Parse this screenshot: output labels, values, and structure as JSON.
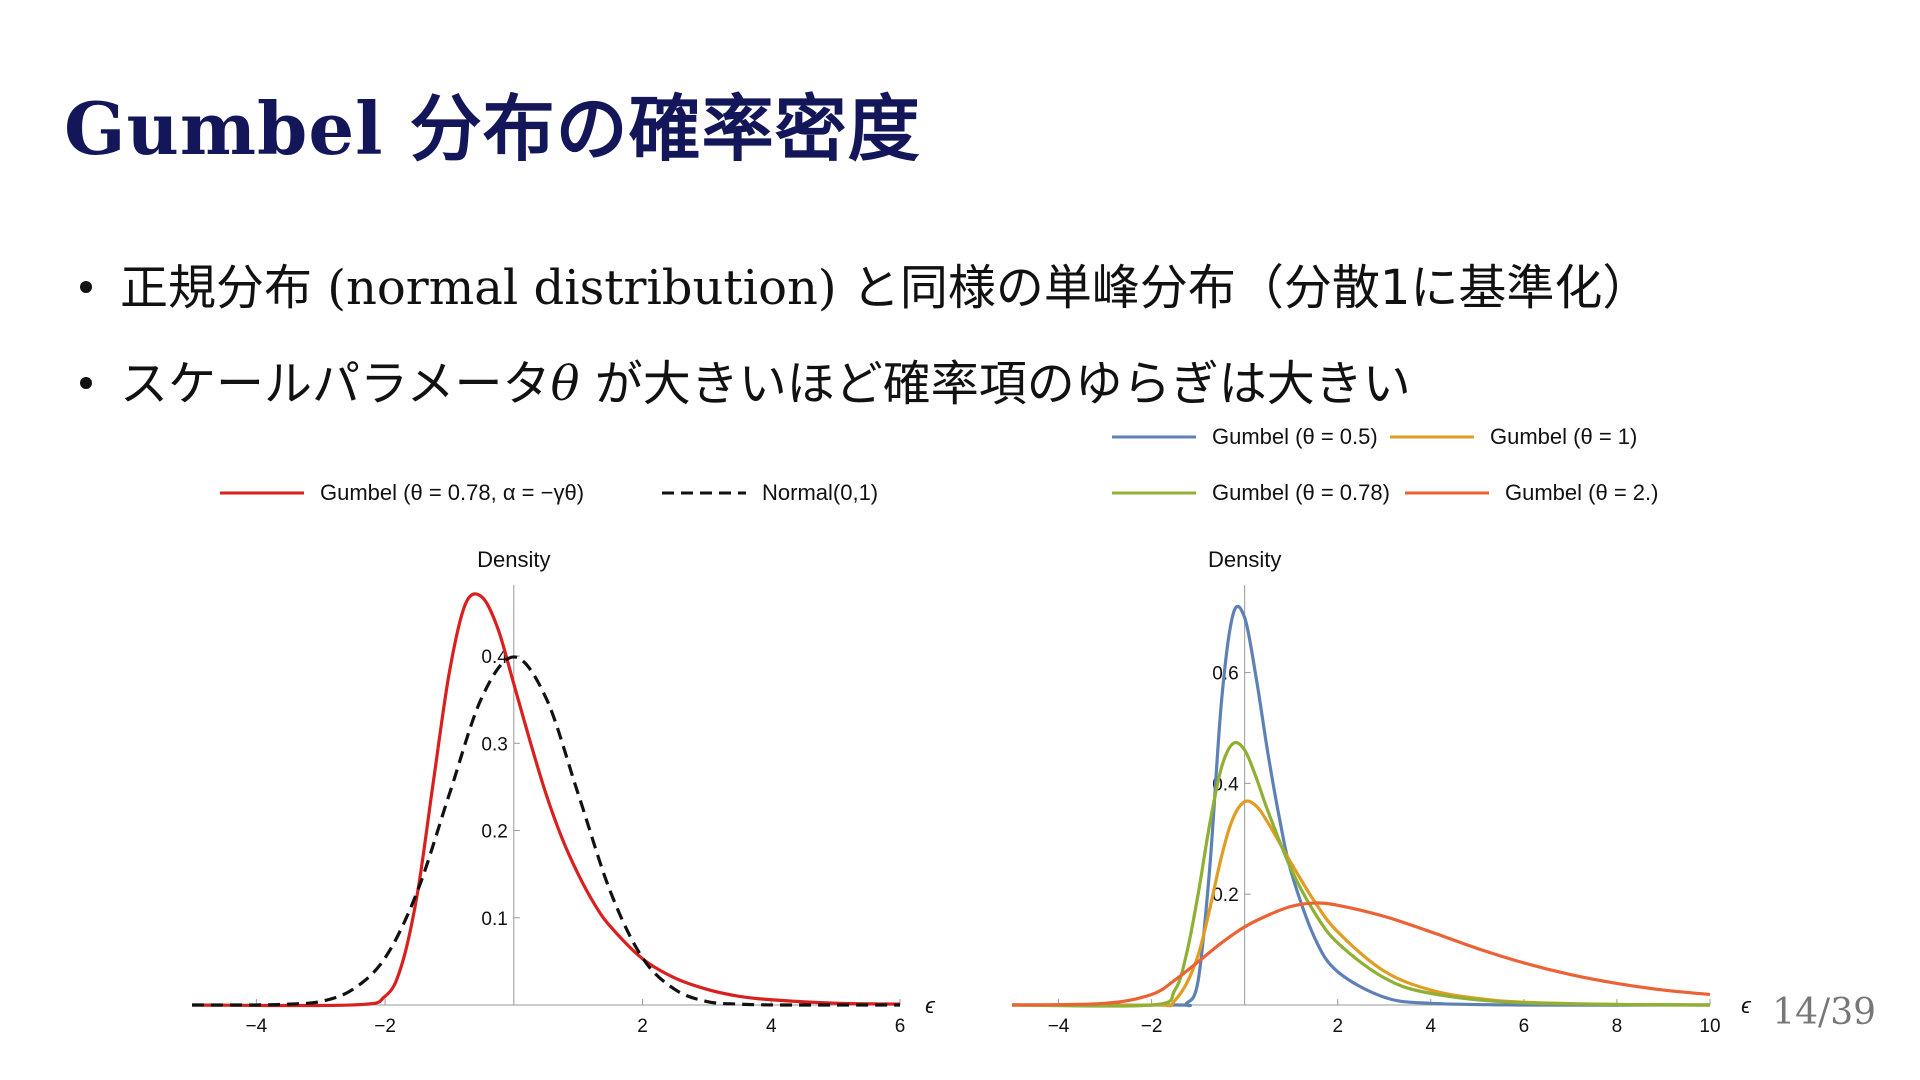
{
  "title": "Gumbel 分布の確率密度",
  "bullets": {
    "b1_pre": "正規分布 ",
    "b1_serif": "(normal distribution)",
    "b1_post": " と同様の単峰分布（分散1に基準化）",
    "b2_pre": "スケールパラメータ",
    "b2_theta": "θ",
    "b2_post": " が大きいほど確率項のゆらぎは大きい"
  },
  "page": {
    "current": "14",
    "sep": "/",
    "total": "39"
  },
  "chart_data": [
    {
      "type": "line",
      "ylabel": "Density",
      "xlabel": "ϵ",
      "xlim": [
        -5,
        6
      ],
      "ylim": [
        0,
        0.47
      ],
      "xticks": [
        -4,
        -2,
        2,
        4,
        6
      ],
      "yticks": [
        0.1,
        0.2,
        0.3,
        0.4
      ],
      "legend_position": "top",
      "series": [
        {
          "name": "Gumbel (θ = 0.78, α = −γθ)",
          "color": "#d9201e",
          "dash": "solid",
          "x": [
            -5,
            -2.5,
            -2,
            -1.75,
            -1.5,
            -1.25,
            -1,
            -0.75,
            -0.5,
            -0.25,
            0,
            0.25,
            0.5,
            0.75,
            1,
            1.25,
            1.5,
            2,
            2.5,
            3,
            3.5,
            4,
            5,
            6
          ],
          "y": [
            0,
            0.0001,
            0.01,
            0.044,
            0.127,
            0.256,
            0.382,
            0.46,
            0.468,
            0.432,
            0.368,
            0.303,
            0.242,
            0.191,
            0.15,
            0.116,
            0.09,
            0.053,
            0.031,
            0.018,
            0.01,
            0.006,
            0.002,
            0.001
          ]
        },
        {
          "name": "Normal(0,1)",
          "color": "#111111",
          "dash": "dashed",
          "x": [
            -5,
            -4,
            -3.5,
            -3,
            -2.5,
            -2,
            -1.5,
            -1,
            -0.5,
            0,
            0.5,
            1,
            1.5,
            2,
            2.5,
            3,
            3.5,
            4,
            5,
            6
          ],
          "y": [
            0,
            0.0001,
            0.001,
            0.004,
            0.018,
            0.054,
            0.13,
            0.242,
            0.352,
            0.399,
            0.352,
            0.242,
            0.13,
            0.054,
            0.018,
            0.004,
            0.001,
            0.0001,
            0,
            0
          ]
        }
      ]
    },
    {
      "type": "line",
      "ylabel": "Density",
      "xlabel": "ϵ",
      "xlim": [
        -5,
        10
      ],
      "ylim": [
        0,
        0.74
      ],
      "xticks": [
        -4,
        -2,
        2,
        4,
        6,
        8,
        10
      ],
      "yticks": [
        0.2,
        0.4,
        0.6
      ],
      "legend_position": "top",
      "series": [
        {
          "name": "Gumbel (θ = 0.5)",
          "color": "#5e81b5",
          "x": [
            -5,
            -1.5,
            -1.25,
            -1,
            -0.75,
            -0.5,
            -0.25,
            0,
            0.25,
            0.5,
            0.75,
            1,
            1.5,
            2,
            3,
            4,
            6,
            10
          ],
          "y": [
            0,
            0.0,
            0.003,
            0.044,
            0.248,
            0.546,
            0.705,
            0.699,
            0.589,
            0.454,
            0.336,
            0.24,
            0.122,
            0.06,
            0.014,
            0.003,
            0,
            0
          ]
        },
        {
          "name": "Gumbel (θ = 1)",
          "color": "#e19c24",
          "x": [
            -5,
            -2,
            -1.5,
            -1,
            -0.5,
            -0.25,
            0,
            0.25,
            0.5,
            1,
            1.5,
            2,
            3,
            4,
            5,
            6,
            8,
            10
          ],
          "y": [
            0,
            0.0,
            0.008,
            0.09,
            0.267,
            0.337,
            0.367,
            0.359,
            0.329,
            0.256,
            0.187,
            0.132,
            0.061,
            0.027,
            0.012,
            0.005,
            0.001,
            0
          ]
        },
        {
          "name": "Gumbel (θ = 0.78)",
          "color": "#8fb032",
          "x": [
            -5,
            -2,
            -1.5,
            -1.25,
            -1,
            -0.75,
            -0.5,
            -0.25,
            0,
            0.25,
            0.5,
            1,
            1.5,
            2,
            3,
            4,
            6,
            10
          ],
          "y": [
            0,
            0.0,
            0.027,
            0.092,
            0.2,
            0.327,
            0.428,
            0.472,
            0.46,
            0.41,
            0.35,
            0.245,
            0.167,
            0.112,
            0.049,
            0.021,
            0.004,
            0
          ]
        },
        {
          "name": "Gumbel (θ = 2.)",
          "color": "#eb6235",
          "x": [
            -5,
            -3,
            -2,
            -1.5,
            -1,
            -0.5,
            0,
            0.5,
            1,
            1.5,
            2,
            3,
            4,
            5,
            6,
            7,
            8,
            9,
            10
          ],
          "y": [
            0,
            0.003,
            0.019,
            0.045,
            0.078,
            0.112,
            0.141,
            0.162,
            0.178,
            0.184,
            0.18,
            0.16,
            0.132,
            0.102,
            0.076,
            0.055,
            0.039,
            0.027,
            0.019
          ]
        }
      ]
    }
  ]
}
